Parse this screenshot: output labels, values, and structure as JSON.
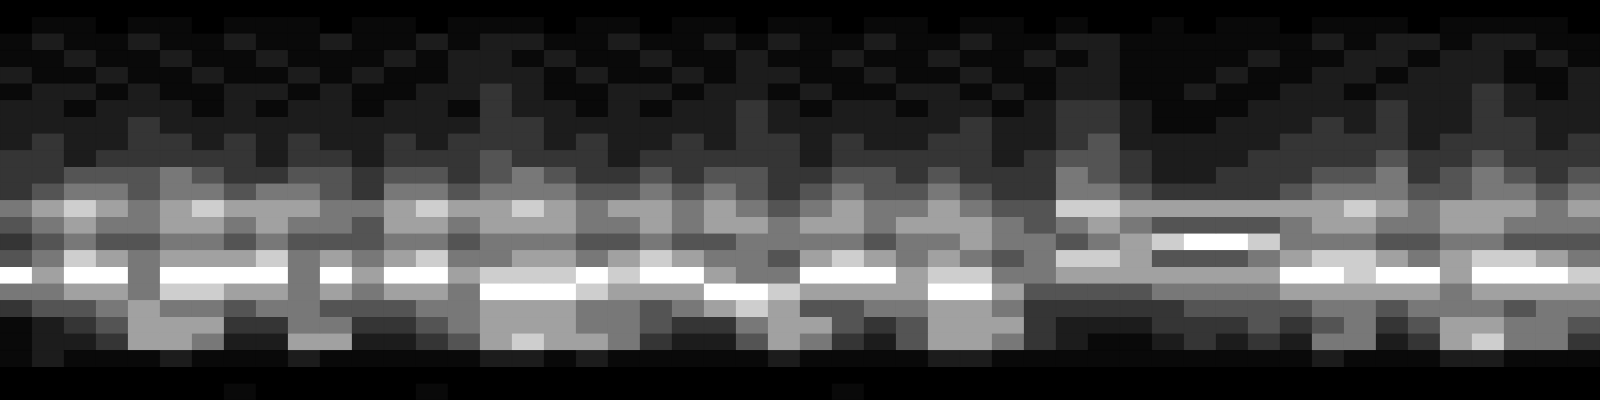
{
  "chart_data": {
    "type": "heatmap",
    "grid": false,
    "tick_labels": false,
    "cells": [
      [
        0,
        0,
        0,
        0,
        0,
        0,
        0,
        0,
        0,
        0,
        0,
        0,
        0,
        0,
        0,
        0,
        0,
        0,
        0,
        0,
        0,
        0,
        0,
        0,
        0,
        0,
        0,
        0,
        0,
        0,
        0,
        0,
        0,
        0,
        0,
        0,
        0,
        0,
        0,
        0,
        0,
        0,
        0,
        0,
        0,
        0,
        0,
        0,
        0,
        0
      ],
      [
        0,
        1,
        1,
        0,
        1,
        1,
        0,
        1,
        1,
        1,
        0,
        1,
        1,
        0,
        1,
        1,
        1,
        0,
        1,
        1,
        0,
        1,
        1,
        0,
        1,
        1,
        0,
        1,
        1,
        0,
        1,
        1,
        0,
        1,
        0,
        0,
        1,
        0,
        1,
        1,
        0,
        1,
        1,
        1,
        0,
        1,
        1,
        1,
        1,
        0
      ],
      [
        1,
        2,
        1,
        1,
        2,
        1,
        1,
        2,
        1,
        1,
        2,
        1,
        1,
        2,
        1,
        2,
        2,
        1,
        1,
        2,
        1,
        1,
        2,
        1,
        2,
        1,
        1,
        2,
        1,
        1,
        2,
        1,
        1,
        2,
        2,
        1,
        1,
        1,
        1,
        1,
        1,
        2,
        1,
        2,
        2,
        1,
        2,
        2,
        1,
        1
      ],
      [
        1,
        1,
        2,
        1,
        1,
        2,
        1,
        1,
        2,
        1,
        1,
        1,
        2,
        1,
        2,
        2,
        1,
        2,
        1,
        1,
        2,
        1,
        1,
        2,
        1,
        1,
        2,
        1,
        1,
        2,
        1,
        1,
        2,
        1,
        2,
        1,
        1,
        1,
        1,
        2,
        1,
        1,
        2,
        2,
        1,
        2,
        2,
        1,
        2,
        1
      ],
      [
        2,
        1,
        1,
        2,
        1,
        1,
        2,
        1,
        1,
        2,
        1,
        2,
        1,
        1,
        2,
        2,
        2,
        1,
        2,
        1,
        1,
        2,
        1,
        2,
        2,
        1,
        1,
        2,
        1,
        1,
        2,
        1,
        1,
        2,
        2,
        1,
        1,
        1,
        2,
        1,
        1,
        2,
        2,
        1,
        2,
        2,
        2,
        1,
        1,
        2
      ],
      [
        1,
        2,
        2,
        1,
        2,
        1,
        1,
        2,
        2,
        1,
        2,
        1,
        1,
        2,
        2,
        3,
        2,
        1,
        1,
        2,
        2,
        1,
        2,
        2,
        1,
        2,
        1,
        1,
        2,
        2,
        1,
        2,
        1,
        2,
        2,
        1,
        1,
        2,
        1,
        1,
        2,
        2,
        1,
        2,
        2,
        2,
        3,
        2,
        1,
        2
      ],
      [
        2,
        2,
        1,
        2,
        2,
        2,
        1,
        2,
        1,
        2,
        2,
        1,
        2,
        2,
        1,
        3,
        2,
        2,
        1,
        2,
        1,
        2,
        2,
        3,
        2,
        1,
        2,
        2,
        1,
        2,
        2,
        1,
        2,
        3,
        3,
        2,
        1,
        1,
        1,
        2,
        2,
        2,
        2,
        3,
        2,
        2,
        3,
        2,
        2,
        2
      ],
      [
        2,
        2,
        2,
        2,
        3,
        2,
        2,
        2,
        2,
        2,
        2,
        2,
        2,
        2,
        2,
        3,
        3,
        2,
        2,
        2,
        2,
        2,
        2,
        3,
        2,
        2,
        2,
        2,
        2,
        2,
        3,
        2,
        2,
        3,
        3,
        2,
        1,
        1,
        2,
        2,
        2,
        3,
        2,
        3,
        2,
        2,
        3,
        3,
        2,
        2
      ],
      [
        2,
        3,
        2,
        2,
        3,
        3,
        2,
        3,
        2,
        3,
        2,
        2,
        3,
        2,
        3,
        3,
        3,
        2,
        3,
        2,
        2,
        3,
        2,
        3,
        3,
        2,
        3,
        2,
        2,
        3,
        3,
        2,
        2,
        3,
        4,
        2,
        2,
        2,
        2,
        2,
        3,
        3,
        3,
        3,
        2,
        3,
        3,
        3,
        2,
        3
      ],
      [
        3,
        3,
        2,
        3,
        3,
        3,
        3,
        3,
        2,
        3,
        3,
        2,
        3,
        3,
        3,
        4,
        3,
        3,
        3,
        2,
        3,
        3,
        3,
        3,
        3,
        2,
        3,
        3,
        3,
        3,
        3,
        2,
        3,
        4,
        4,
        3,
        2,
        2,
        2,
        3,
        3,
        3,
        3,
        4,
        3,
        3,
        4,
        3,
        3,
        3
      ],
      [
        3,
        3,
        4,
        4,
        4,
        5,
        4,
        3,
        3,
        4,
        4,
        3,
        4,
        4,
        3,
        4,
        5,
        4,
        3,
        3,
        4,
        3,
        4,
        4,
        3,
        3,
        4,
        4,
        3,
        4,
        3,
        3,
        3,
        5,
        4,
        3,
        2,
        2,
        3,
        3,
        3,
        4,
        4,
        5,
        3,
        4,
        5,
        4,
        3,
        4
      ],
      [
        3,
        4,
        5,
        5,
        4,
        5,
        5,
        4,
        5,
        5,
        4,
        3,
        5,
        5,
        4,
        5,
        5,
        5,
        4,
        4,
        5,
        4,
        5,
        4,
        3,
        4,
        5,
        4,
        4,
        5,
        4,
        3,
        3,
        5,
        5,
        4,
        3,
        3,
        3,
        3,
        4,
        5,
        5,
        5,
        4,
        4,
        5,
        5,
        4,
        5
      ],
      [
        5,
        6,
        7,
        6,
        5,
        6,
        7,
        6,
        6,
        6,
        5,
        5,
        6,
        7,
        6,
        6,
        7,
        6,
        5,
        6,
        6,
        5,
        6,
        5,
        4,
        5,
        6,
        5,
        5,
        6,
        5,
        4,
        4,
        7,
        7,
        6,
        6,
        6,
        6,
        6,
        6,
        6,
        7,
        6,
        5,
        6,
        6,
        6,
        5,
        6
      ],
      [
        4,
        5,
        6,
        5,
        5,
        6,
        6,
        5,
        6,
        5,
        5,
        4,
        6,
        6,
        5,
        6,
        6,
        6,
        5,
        5,
        6,
        5,
        6,
        6,
        5,
        6,
        6,
        5,
        6,
        6,
        6,
        5,
        4,
        5,
        6,
        5,
        4,
        4,
        4,
        4,
        5,
        6,
        6,
        5,
        5,
        6,
        6,
        5,
        5,
        5
      ],
      [
        3,
        4,
        5,
        4,
        4,
        5,
        5,
        4,
        5,
        4,
        4,
        4,
        5,
        5,
        4,
        5,
        5,
        5,
        4,
        4,
        5,
        4,
        4,
        5,
        5,
        5,
        5,
        4,
        5,
        5,
        6,
        5,
        5,
        4,
        5,
        6,
        7,
        8,
        8,
        7,
        5,
        5,
        5,
        4,
        4,
        5,
        5,
        4,
        4,
        4
      ],
      [
        4,
        5,
        7,
        6,
        5,
        6,
        6,
        6,
        7,
        5,
        6,
        5,
        6,
        7,
        5,
        5,
        6,
        6,
        5,
        6,
        7,
        6,
        5,
        5,
        4,
        6,
        7,
        6,
        5,
        6,
        5,
        4,
        5,
        7,
        7,
        6,
        4,
        4,
        4,
        5,
        6,
        7,
        7,
        6,
        5,
        6,
        7,
        7,
        6,
        5
      ],
      [
        8,
        6,
        8,
        8,
        5,
        8,
        8,
        8,
        8,
        5,
        8,
        6,
        8,
        8,
        6,
        7,
        7,
        7,
        8,
        7,
        8,
        8,
        6,
        5,
        5,
        8,
        8,
        8,
        6,
        7,
        7,
        5,
        5,
        6,
        6,
        6,
        6,
        6,
        6,
        6,
        8,
        8,
        7,
        8,
        8,
        6,
        8,
        8,
        8,
        7
      ],
      [
        5,
        5,
        6,
        6,
        5,
        7,
        7,
        6,
        6,
        5,
        6,
        5,
        6,
        6,
        5,
        8,
        8,
        8,
        7,
        6,
        6,
        6,
        8,
        8,
        7,
        6,
        6,
        6,
        6,
        8,
        8,
        6,
        4,
        4,
        4,
        4,
        5,
        5,
        5,
        5,
        6,
        6,
        6,
        6,
        6,
        5,
        6,
        6,
        6,
        6
      ],
      [
        3,
        4,
        4,
        5,
        6,
        5,
        5,
        4,
        5,
        5,
        4,
        4,
        4,
        5,
        5,
        6,
        6,
        6,
        5,
        5,
        4,
        5,
        6,
        7,
        6,
        4,
        4,
        5,
        5,
        6,
        6,
        5,
        3,
        3,
        3,
        3,
        3,
        4,
        4,
        4,
        4,
        5,
        5,
        4,
        5,
        5,
        5,
        4,
        5,
        5
      ],
      [
        1,
        2,
        3,
        4,
        6,
        6,
        6,
        3,
        3,
        5,
        5,
        3,
        3,
        4,
        5,
        6,
        6,
        6,
        5,
        5,
        4,
        3,
        3,
        5,
        6,
        6,
        4,
        3,
        4,
        6,
        6,
        6,
        3,
        2,
        2,
        2,
        3,
        3,
        3,
        4,
        3,
        4,
        5,
        3,
        4,
        6,
        6,
        5,
        5,
        4
      ],
      [
        1,
        2,
        2,
        3,
        6,
        6,
        5,
        2,
        2,
        6,
        6,
        2,
        2,
        3,
        4,
        6,
        7,
        6,
        6,
        5,
        3,
        2,
        2,
        4,
        6,
        5,
        3,
        2,
        4,
        6,
        6,
        5,
        3,
        2,
        1,
        1,
        2,
        3,
        2,
        3,
        2,
        5,
        5,
        2,
        3,
        6,
        7,
        5,
        5,
        3
      ],
      [
        1,
        2,
        1,
        1,
        1,
        2,
        1,
        1,
        1,
        2,
        1,
        1,
        1,
        1,
        1,
        2,
        2,
        1,
        2,
        1,
        1,
        1,
        1,
        1,
        2,
        1,
        1,
        1,
        1,
        2,
        2,
        1,
        1,
        1,
        1,
        1,
        1,
        1,
        1,
        1,
        1,
        2,
        1,
        1,
        1,
        2,
        2,
        1,
        1,
        1
      ],
      [
        0,
        0,
        0,
        0,
        0,
        0,
        0,
        0,
        0,
        0,
        0,
        0,
        0,
        0,
        0,
        0,
        0,
        0,
        0,
        0,
        0,
        0,
        0,
        0,
        0,
        0,
        0,
        0,
        0,
        0,
        0,
        0,
        0,
        0,
        0,
        0,
        0,
        0,
        0,
        0,
        0,
        0,
        0,
        0,
        0,
        0,
        0,
        0,
        0,
        0
      ],
      [
        0,
        0,
        0,
        0,
        0,
        0,
        0,
        1,
        0,
        0,
        0,
        0,
        0,
        1,
        0,
        0,
        0,
        0,
        0,
        0,
        0,
        0,
        0,
        0,
        0,
        0,
        1,
        0,
        0,
        0,
        0,
        0,
        0,
        0,
        0,
        0,
        0,
        0,
        0,
        0,
        0,
        0,
        0,
        0,
        0,
        0,
        0,
        0,
        0,
        0
      ]
    ]
  }
}
